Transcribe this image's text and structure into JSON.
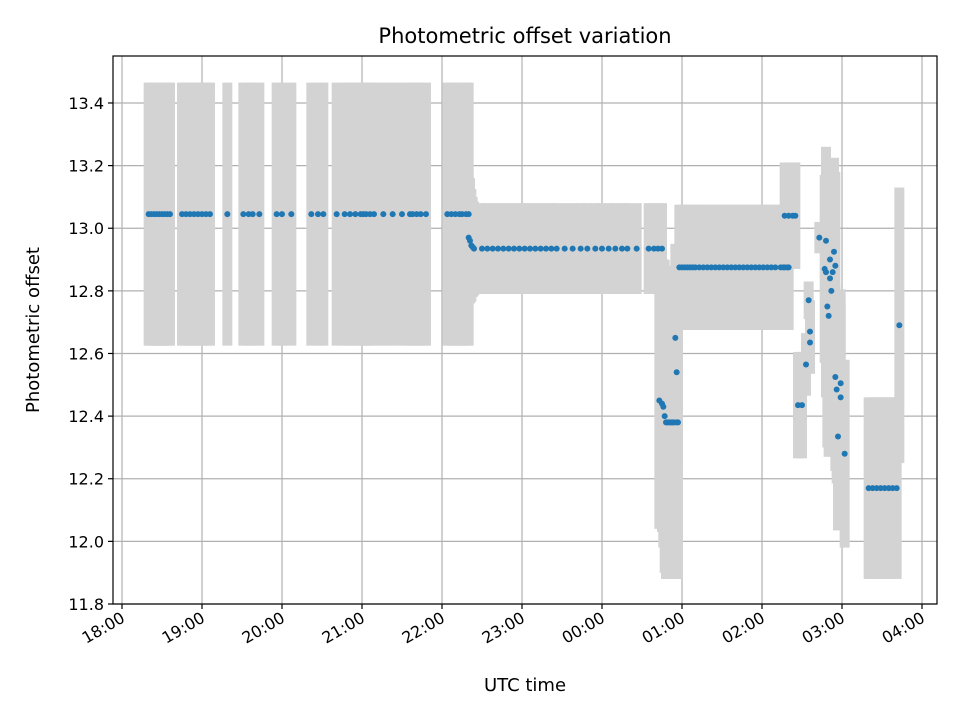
{
  "chart_data": {
    "type": "scatter",
    "title": "Photometric offset variation",
    "xlabel": "UTC time",
    "ylabel": "Photometric offset",
    "x_unit": "UTC",
    "xlim": [
      "18:00",
      "04:00"
    ],
    "ylim": [
      11.8,
      13.55
    ],
    "x_ticks": [
      "18:00",
      "19:00",
      "20:00",
      "21:00",
      "22:00",
      "23:00",
      "00:00",
      "01:00",
      "02:00",
      "03:00",
      "04:00"
    ],
    "y_ticks": [
      "11.8",
      "12.0",
      "12.2",
      "12.4",
      "12.6",
      "12.8",
      "13.0",
      "13.2",
      "13.4"
    ],
    "grid": true,
    "legend": false,
    "point_color": "#1f77b4",
    "errorbar_color": "#d3d3d3",
    "series": [
      {
        "points": [
          {
            "t": "18:20",
            "y": 13.045,
            "e": 0.42
          },
          {
            "t": "18:22",
            "y": 13.045,
            "e": 0.42
          },
          {
            "t": "18:24",
            "y": 13.045,
            "e": 0.42
          },
          {
            "t": "18:26",
            "y": 13.045,
            "e": 0.42
          },
          {
            "t": "18:28",
            "y": 13.045,
            "e": 0.42
          },
          {
            "t": "18:30",
            "y": 13.045,
            "e": 0.42
          },
          {
            "t": "18:32",
            "y": 13.045,
            "e": 0.42
          },
          {
            "t": "18:34",
            "y": 13.045,
            "e": 0.42
          },
          {
            "t": "18:36",
            "y": 13.045,
            "e": 0.42
          },
          {
            "t": "18:45",
            "y": 13.045,
            "e": 0.42
          },
          {
            "t": "18:48",
            "y": 13.045,
            "e": 0.42
          },
          {
            "t": "18:51",
            "y": 13.045,
            "e": 0.42
          },
          {
            "t": "18:54",
            "y": 13.045,
            "e": 0.42
          },
          {
            "t": "18:57",
            "y": 13.045,
            "e": 0.42
          },
          {
            "t": "19:00",
            "y": 13.045,
            "e": 0.42
          },
          {
            "t": "19:03",
            "y": 13.045,
            "e": 0.42
          },
          {
            "t": "19:06",
            "y": 13.045,
            "e": 0.42
          },
          {
            "t": "19:19",
            "y": 13.045,
            "e": 0.42
          },
          {
            "t": "19:31",
            "y": 13.045,
            "e": 0.42
          },
          {
            "t": "19:35",
            "y": 13.045,
            "e": 0.42
          },
          {
            "t": "19:38",
            "y": 13.045,
            "e": 0.42
          },
          {
            "t": "19:43",
            "y": 13.045,
            "e": 0.42
          },
          {
            "t": "19:56",
            "y": 13.045,
            "e": 0.42
          },
          {
            "t": "20:00",
            "y": 13.045,
            "e": 0.42
          },
          {
            "t": "20:07",
            "y": 13.045,
            "e": 0.42
          },
          {
            "t": "20:22",
            "y": 13.045,
            "e": 0.42
          },
          {
            "t": "20:27",
            "y": 13.045,
            "e": 0.42
          },
          {
            "t": "20:31",
            "y": 13.045,
            "e": 0.42
          },
          {
            "t": "20:41",
            "y": 13.045,
            "e": 0.42
          },
          {
            "t": "20:47",
            "y": 13.045,
            "e": 0.42
          },
          {
            "t": "20:51",
            "y": 13.045,
            "e": 0.42
          },
          {
            "t": "20:55",
            "y": 13.045,
            "e": 0.42
          },
          {
            "t": "20:59",
            "y": 13.045,
            "e": 0.42
          },
          {
            "t": "21:01",
            "y": 13.045,
            "e": 0.42
          },
          {
            "t": "21:03",
            "y": 13.045,
            "e": 0.42
          },
          {
            "t": "21:06",
            "y": 13.045,
            "e": 0.42
          },
          {
            "t": "21:09",
            "y": 13.045,
            "e": 0.42
          },
          {
            "t": "21:16",
            "y": 13.045,
            "e": 0.42
          },
          {
            "t": "21:23",
            "y": 13.045,
            "e": 0.42
          },
          {
            "t": "21:30",
            "y": 13.045,
            "e": 0.42
          },
          {
            "t": "21:36",
            "y": 13.045,
            "e": 0.42
          },
          {
            "t": "21:38",
            "y": 13.045,
            "e": 0.42
          },
          {
            "t": "21:41",
            "y": 13.045,
            "e": 0.42
          },
          {
            "t": "21:44",
            "y": 13.045,
            "e": 0.42
          },
          {
            "t": "21:48",
            "y": 13.045,
            "e": 0.42
          },
          {
            "t": "22:04",
            "y": 13.045,
            "e": 0.42
          },
          {
            "t": "22:07",
            "y": 13.045,
            "e": 0.42
          },
          {
            "t": "22:10",
            "y": 13.045,
            "e": 0.42
          },
          {
            "t": "22:13",
            "y": 13.045,
            "e": 0.42
          },
          {
            "t": "22:15",
            "y": 13.045,
            "e": 0.42
          },
          {
            "t": "22:18",
            "y": 13.045,
            "e": 0.42
          },
          {
            "t": "22:20",
            "y": 13.045,
            "e": 0.42
          },
          {
            "t": "22:20",
            "y": 12.97,
            "e": 0.2
          },
          {
            "t": "22:21",
            "y": 12.96,
            "e": 0.2
          },
          {
            "t": "22:22",
            "y": 12.945,
            "e": 0.18
          },
          {
            "t": "22:23",
            "y": 12.94,
            "e": 0.16
          },
          {
            "t": "22:24",
            "y": 12.935,
            "e": 0.15
          },
          {
            "t": "22:30",
            "y": 12.935,
            "e": 0.145
          },
          {
            "t": "22:34",
            "y": 12.935,
            "e": 0.145
          },
          {
            "t": "22:38",
            "y": 12.935,
            "e": 0.145
          },
          {
            "t": "22:42",
            "y": 12.935,
            "e": 0.145
          },
          {
            "t": "22:46",
            "y": 12.935,
            "e": 0.145
          },
          {
            "t": "22:50",
            "y": 12.935,
            "e": 0.145
          },
          {
            "t": "22:54",
            "y": 12.935,
            "e": 0.145
          },
          {
            "t": "22:58",
            "y": 12.935,
            "e": 0.145
          },
          {
            "t": "23:02",
            "y": 12.935,
            "e": 0.145
          },
          {
            "t": "23:06",
            "y": 12.935,
            "e": 0.145
          },
          {
            "t": "23:10",
            "y": 12.935,
            "e": 0.145
          },
          {
            "t": "23:14",
            "y": 12.935,
            "e": 0.145
          },
          {
            "t": "23:18",
            "y": 12.935,
            "e": 0.145
          },
          {
            "t": "23:22",
            "y": 12.935,
            "e": 0.145
          },
          {
            "t": "23:26",
            "y": 12.935,
            "e": 0.145
          },
          {
            "t": "23:32",
            "y": 12.935,
            "e": 0.145
          },
          {
            "t": "23:38",
            "y": 12.935,
            "e": 0.145
          },
          {
            "t": "23:44",
            "y": 12.935,
            "e": 0.145
          },
          {
            "t": "23:49",
            "y": 12.935,
            "e": 0.145
          },
          {
            "t": "23:55",
            "y": 12.935,
            "e": 0.145
          },
          {
            "t": "24:00",
            "y": 12.935,
            "e": 0.145
          },
          {
            "t": "24:05",
            "y": 12.935,
            "e": 0.145
          },
          {
            "t": "24:10",
            "y": 12.935,
            "e": 0.145
          },
          {
            "t": "24:15",
            "y": 12.935,
            "e": 0.145
          },
          {
            "t": "24:19",
            "y": 12.935,
            "e": 0.145
          },
          {
            "t": "24:26",
            "y": 12.935,
            "e": 0.145
          },
          {
            "t": "24:35",
            "y": 12.935,
            "e": 0.145
          },
          {
            "t": "24:39",
            "y": 12.935,
            "e": 0.145
          },
          {
            "t": "24:42",
            "y": 12.935,
            "e": 0.145
          },
          {
            "t": "24:45",
            "y": 12.935,
            "e": 0.145
          },
          {
            "t": "24:43",
            "y": 12.45,
            "e": 0.41
          },
          {
            "t": "24:45",
            "y": 12.44,
            "e": 0.41
          },
          {
            "t": "24:46",
            "y": 12.43,
            "e": 0.45
          },
          {
            "t": "24:47",
            "y": 12.4,
            "e": 0.5
          },
          {
            "t": "24:48",
            "y": 12.38,
            "e": 0.5
          },
          {
            "t": "24:49",
            "y": 12.38,
            "e": 0.5
          },
          {
            "t": "24:50",
            "y": 12.38,
            "e": 0.5
          },
          {
            "t": "24:51",
            "y": 12.38,
            "e": 0.5
          },
          {
            "t": "24:52",
            "y": 12.38,
            "e": 0.5
          },
          {
            "t": "24:53",
            "y": 12.38,
            "e": 0.5
          },
          {
            "t": "24:54",
            "y": 12.38,
            "e": 0.5
          },
          {
            "t": "24:56",
            "y": 12.38,
            "e": 0.5
          },
          {
            "t": "24:57",
            "y": 12.38,
            "e": 0.5
          },
          {
            "t": "24:55",
            "y": 12.65,
            "e": 0.3
          },
          {
            "t": "24:56",
            "y": 12.54,
            "e": 0.3
          },
          {
            "t": "24:58",
            "y": 12.875,
            "e": 0.2
          },
          {
            "t": "25:00",
            "y": 12.875,
            "e": 0.2
          },
          {
            "t": "25:02",
            "y": 12.875,
            "e": 0.2
          },
          {
            "t": "25:04",
            "y": 12.875,
            "e": 0.2
          },
          {
            "t": "25:06",
            "y": 12.875,
            "e": 0.2
          },
          {
            "t": "25:08",
            "y": 12.875,
            "e": 0.2
          },
          {
            "t": "25:10",
            "y": 12.875,
            "e": 0.2
          },
          {
            "t": "25:13",
            "y": 12.875,
            "e": 0.2
          },
          {
            "t": "25:16",
            "y": 12.875,
            "e": 0.2
          },
          {
            "t": "25:19",
            "y": 12.875,
            "e": 0.2
          },
          {
            "t": "25:22",
            "y": 12.875,
            "e": 0.2
          },
          {
            "t": "25:25",
            "y": 12.875,
            "e": 0.2
          },
          {
            "t": "25:28",
            "y": 12.875,
            "e": 0.2
          },
          {
            "t": "25:31",
            "y": 12.875,
            "e": 0.2
          },
          {
            "t": "25:34",
            "y": 12.875,
            "e": 0.2
          },
          {
            "t": "25:37",
            "y": 12.875,
            "e": 0.2
          },
          {
            "t": "25:40",
            "y": 12.875,
            "e": 0.2
          },
          {
            "t": "25:43",
            "y": 12.875,
            "e": 0.2
          },
          {
            "t": "25:46",
            "y": 12.875,
            "e": 0.2
          },
          {
            "t": "25:49",
            "y": 12.875,
            "e": 0.2
          },
          {
            "t": "25:52",
            "y": 12.875,
            "e": 0.2
          },
          {
            "t": "25:55",
            "y": 12.875,
            "e": 0.2
          },
          {
            "t": "25:58",
            "y": 12.875,
            "e": 0.2
          },
          {
            "t": "26:01",
            "y": 12.875,
            "e": 0.2
          },
          {
            "t": "26:04",
            "y": 12.875,
            "e": 0.2
          },
          {
            "t": "26:07",
            "y": 12.875,
            "e": 0.2
          },
          {
            "t": "26:10",
            "y": 12.875,
            "e": 0.2
          },
          {
            "t": "26:14",
            "y": 12.875,
            "e": 0.2
          },
          {
            "t": "26:16",
            "y": 12.875,
            "e": 0.2
          },
          {
            "t": "26:19",
            "y": 12.875,
            "e": 0.2
          },
          {
            "t": "26:17",
            "y": 12.875,
            "e": 0.2
          },
          {
            "t": "26:20",
            "y": 12.875,
            "e": 0.2
          },
          {
            "t": "26:17",
            "y": 13.04,
            "e": 0.17
          },
          {
            "t": "26:20",
            "y": 13.04,
            "e": 0.17
          },
          {
            "t": "26:23",
            "y": 13.04,
            "e": 0.17
          },
          {
            "t": "26:25",
            "y": 13.04,
            "e": 0.17
          },
          {
            "t": "26:27",
            "y": 12.435,
            "e": 0.17
          },
          {
            "t": "26:30",
            "y": 12.435,
            "e": 0.17
          },
          {
            "t": "26:33",
            "y": 12.565,
            "e": 0.1
          },
          {
            "t": "26:35",
            "y": 12.77,
            "e": 0.06
          },
          {
            "t": "26:36",
            "y": 12.67,
            "e": 0.1
          },
          {
            "t": "26:36",
            "y": 12.635,
            "e": 0.1
          },
          {
            "t": "26:43",
            "y": 12.97,
            "e": 0.05
          },
          {
            "t": "26:48",
            "y": 12.96,
            "e": 0.08
          },
          {
            "t": "26:47",
            "y": 12.87,
            "e": 0.3
          },
          {
            "t": "26:48",
            "y": 12.86,
            "e": 0.4
          },
          {
            "t": "26:49",
            "y": 12.75,
            "e": 0.45
          },
          {
            "t": "26:50",
            "y": 12.72,
            "e": 0.45
          },
          {
            "t": "26:51",
            "y": 12.84,
            "e": 0.3
          },
          {
            "t": "26:51",
            "y": 12.9,
            "e": 0.3
          },
          {
            "t": "26:52",
            "y": 12.8,
            "e": 0.3
          },
          {
            "t": "26:53",
            "y": 12.86,
            "e": 0.3
          },
          {
            "t": "26:54",
            "y": 12.925,
            "e": 0.3
          },
          {
            "t": "26:55",
            "y": 12.88,
            "e": 0.3
          },
          {
            "t": "26:55",
            "y": 12.525,
            "e": 0.3
          },
          {
            "t": "26:56",
            "y": 12.485,
            "e": 0.3
          },
          {
            "t": "26:57",
            "y": 12.335,
            "e": 0.3
          },
          {
            "t": "26:59",
            "y": 12.505,
            "e": 0.3
          },
          {
            "t": "26:59",
            "y": 12.46,
            "e": 0.3
          },
          {
            "t": "27:02",
            "y": 12.28,
            "e": 0.3
          },
          {
            "t": "27:20",
            "y": 12.17,
            "e": 0.29
          },
          {
            "t": "27:23",
            "y": 12.17,
            "e": 0.29
          },
          {
            "t": "27:26",
            "y": 12.17,
            "e": 0.29
          },
          {
            "t": "27:29",
            "y": 12.17,
            "e": 0.29
          },
          {
            "t": "27:32",
            "y": 12.17,
            "e": 0.29
          },
          {
            "t": "27:35",
            "y": 12.17,
            "e": 0.29
          },
          {
            "t": "27:38",
            "y": 12.17,
            "e": 0.29
          },
          {
            "t": "27:41",
            "y": 12.17,
            "e": 0.29
          },
          {
            "t": "27:43",
            "y": 12.69,
            "e": 0.44
          }
        ]
      }
    ]
  }
}
